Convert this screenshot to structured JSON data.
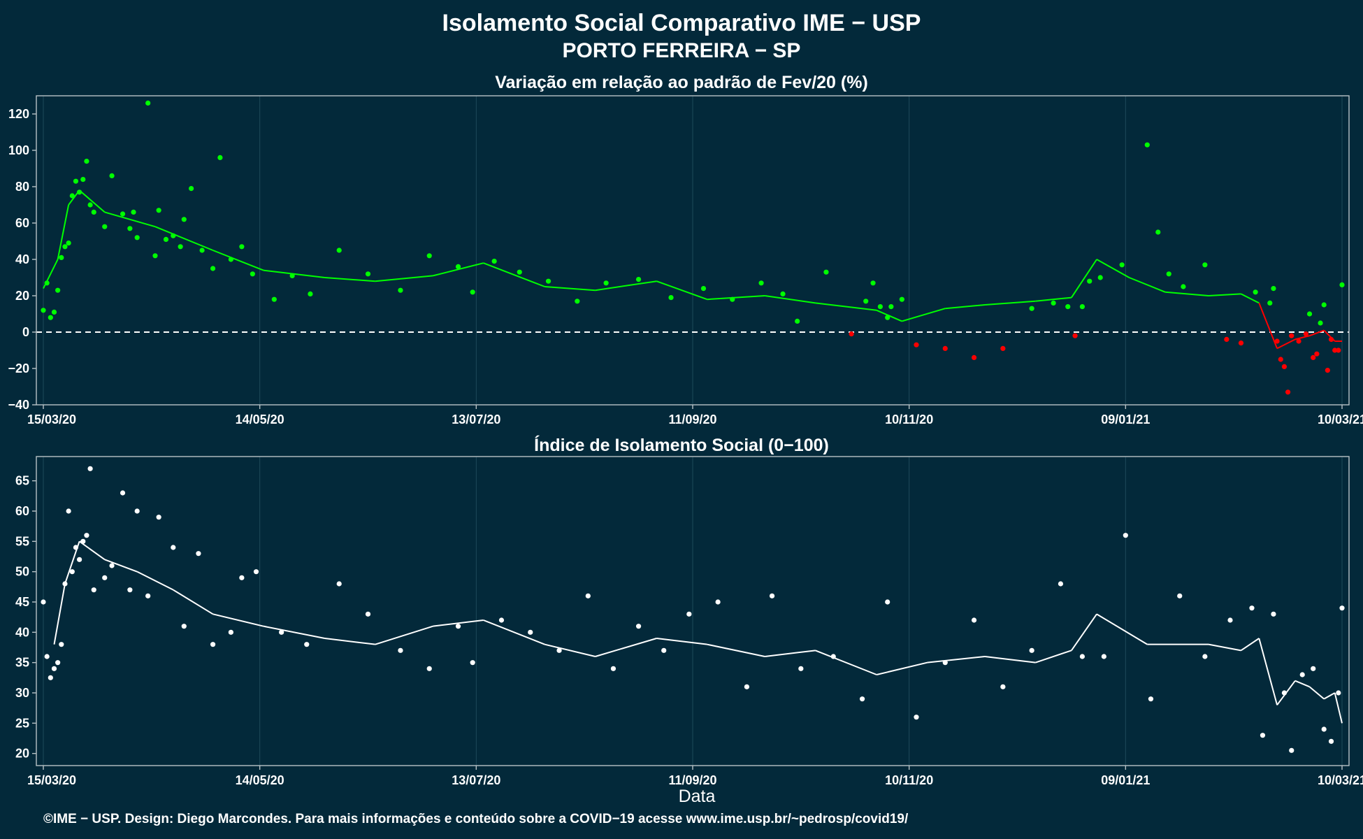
{
  "title_line1": "Isolamento Social Comparativo IME − USP",
  "title_line2": "PORTO FERREIRA − SP",
  "xlabel": "Data",
  "caption": "©IME − USP. Design: Diego Marcondes. Para mais informações e conteúdo sobre a COVID−19 acesse www.ime.usp.br/~pedrosp/covid19/",
  "colors": {
    "background": "#03293a",
    "positive": "#00ff00",
    "negative": "#ff0000",
    "index": "#ffffff",
    "reference_line": "#ffffff"
  },
  "chart_data": [
    {
      "type": "scatter",
      "title": "Variação em relação ao padrão de Fev/20 (%)",
      "xtick_labels": [
        "15/03/20",
        "14/05/20",
        "13/07/20",
        "11/09/20",
        "10/11/20",
        "09/01/21",
        "10/03/21"
      ],
      "xlim": [
        "2020-03-15",
        "2021-03-10"
      ],
      "ylim": [
        -40,
        130
      ],
      "yticks": [
        -40,
        -20,
        0,
        20,
        40,
        60,
        80,
        100,
        120
      ],
      "reference_line": 0,
      "series": [
        {
          "kind": "points",
          "color_rule": "green if >= 0, red if < 0",
          "x": [
            "2020-03-15",
            "2020-03-16",
            "2020-03-17",
            "2020-03-18",
            "2020-03-19",
            "2020-03-20",
            "2020-03-21",
            "2020-03-22",
            "2020-03-23",
            "2020-03-24",
            "2020-03-25",
            "2020-03-26",
            "2020-03-27",
            "2020-03-28",
            "2020-03-29",
            "2020-04-01",
            "2020-04-03",
            "2020-04-06",
            "2020-04-08",
            "2020-04-09",
            "2020-04-10",
            "2020-04-13",
            "2020-04-15",
            "2020-04-16",
            "2020-04-18",
            "2020-04-20",
            "2020-04-22",
            "2020-04-23",
            "2020-04-25",
            "2020-04-28",
            "2020-05-01",
            "2020-05-03",
            "2020-05-06",
            "2020-05-09",
            "2020-05-12",
            "2020-05-18",
            "2020-05-23",
            "2020-05-28",
            "2020-06-05",
            "2020-06-13",
            "2020-06-22",
            "2020-06-30",
            "2020-07-08",
            "2020-07-12",
            "2020-07-18",
            "2020-07-25",
            "2020-08-02",
            "2020-08-10",
            "2020-08-18",
            "2020-08-27",
            "2020-09-05",
            "2020-09-14",
            "2020-09-22",
            "2020-09-30",
            "2020-10-06",
            "2020-10-10",
            "2020-10-18",
            "2020-10-25",
            "2020-10-29",
            "2020-10-31",
            "2020-11-02",
            "2020-11-04",
            "2020-11-05",
            "2020-11-08",
            "2020-11-12",
            "2020-11-20",
            "2020-11-28",
            "2020-12-06",
            "2020-12-14",
            "2020-12-20",
            "2020-12-24",
            "2020-12-26",
            "2020-12-28",
            "2020-12-30",
            "2021-01-02",
            "2021-01-08",
            "2021-01-15",
            "2021-01-18",
            "2021-01-21",
            "2021-01-25",
            "2021-01-31",
            "2021-02-06",
            "2021-02-10",
            "2021-02-14",
            "2021-02-18",
            "2021-02-19",
            "2021-02-20",
            "2021-02-21",
            "2021-02-22",
            "2021-02-23",
            "2021-02-24",
            "2021-02-26",
            "2021-02-28",
            "2021-03-01",
            "2021-03-02",
            "2021-03-03",
            "2021-03-04",
            "2021-03-05",
            "2021-03-06",
            "2021-03-07",
            "2021-03-08",
            "2021-03-09",
            "2021-03-10"
          ],
          "y": [
            12,
            27,
            8,
            11,
            23,
            41,
            47,
            49,
            75,
            83,
            77,
            84,
            94,
            70,
            66,
            58,
            86,
            65,
            57,
            66,
            52,
            126,
            42,
            67,
            51,
            53,
            47,
            62,
            79,
            45,
            35,
            96,
            40,
            47,
            32,
            18,
            31,
            21,
            45,
            32,
            23,
            42,
            36,
            22,
            39,
            33,
            28,
            17,
            27,
            29,
            19,
            24,
            18,
            27,
            21,
            6,
            33,
            -1,
            17,
            27,
            14,
            8,
            14,
            18,
            -7,
            -9,
            -14,
            -9,
            13,
            16,
            14,
            -2,
            14,
            28,
            30,
            37,
            103,
            55,
            32,
            25,
            37,
            -4,
            -6,
            22,
            16,
            24,
            -5,
            -15,
            -19,
            -33,
            -2,
            -5,
            -1,
            10,
            -14,
            -12,
            5,
            15,
            -21,
            -4,
            -10,
            -10,
            26
          ]
        },
        {
          "kind": "moving_average",
          "name": "",
          "x": [
            "2020-03-15",
            "2020-03-19",
            "2020-03-22",
            "2020-03-25",
            "2020-04-01",
            "2020-04-15",
            "2020-05-01",
            "2020-05-15",
            "2020-06-01",
            "2020-06-15",
            "2020-07-01",
            "2020-07-15",
            "2020-08-01",
            "2020-08-15",
            "2020-09-01",
            "2020-09-15",
            "2020-10-01",
            "2020-10-15",
            "2020-11-01",
            "2020-11-08",
            "2020-11-20",
            "2020-12-01",
            "2020-12-15",
            "2020-12-25",
            "2021-01-01",
            "2021-01-10",
            "2021-01-20",
            "2021-02-01",
            "2021-02-10",
            "2021-02-15",
            "2021-02-20",
            "2021-02-25",
            "2021-03-01",
            "2021-03-05",
            "2021-03-08",
            "2021-03-10"
          ],
          "y": [
            24,
            40,
            70,
            78,
            66,
            58,
            45,
            34,
            30,
            28,
            31,
            38,
            25,
            23,
            28,
            18,
            20,
            16,
            12,
            6,
            13,
            15,
            17,
            19,
            40,
            30,
            22,
            20,
            21,
            16,
            -9,
            -4,
            -2,
            1,
            -5,
            -5
          ]
        }
      ]
    },
    {
      "type": "scatter",
      "title": "Índice de Isolamento Social (0−100)",
      "xtick_labels": [
        "15/03/20",
        "14/05/20",
        "13/07/20",
        "11/09/20",
        "10/11/20",
        "09/01/21",
        "10/03/21"
      ],
      "xlim": [
        "2020-03-15",
        "2021-03-10"
      ],
      "ylim": [
        18,
        69
      ],
      "yticks": [
        20,
        25,
        30,
        35,
        40,
        45,
        50,
        55,
        60,
        65
      ],
      "series": [
        {
          "kind": "points",
          "x": [
            "2020-03-15",
            "2020-03-16",
            "2020-03-17",
            "2020-03-18",
            "2020-03-19",
            "2020-03-20",
            "2020-03-21",
            "2020-03-22",
            "2020-03-23",
            "2020-03-24",
            "2020-03-25",
            "2020-03-26",
            "2020-03-27",
            "2020-03-28",
            "2020-03-29",
            "2020-04-01",
            "2020-04-03",
            "2020-04-06",
            "2020-04-08",
            "2020-04-10",
            "2020-04-13",
            "2020-04-16",
            "2020-04-20",
            "2020-04-23",
            "2020-04-27",
            "2020-05-01",
            "2020-05-06",
            "2020-05-09",
            "2020-05-13",
            "2020-05-20",
            "2020-05-27",
            "2020-06-05",
            "2020-06-13",
            "2020-06-22",
            "2020-06-30",
            "2020-07-08",
            "2020-07-12",
            "2020-07-20",
            "2020-07-28",
            "2020-08-05",
            "2020-08-13",
            "2020-08-20",
            "2020-08-27",
            "2020-09-03",
            "2020-09-10",
            "2020-09-18",
            "2020-09-26",
            "2020-10-03",
            "2020-10-11",
            "2020-10-20",
            "2020-10-28",
            "2020-11-04",
            "2020-11-12",
            "2020-11-20",
            "2020-11-28",
            "2020-12-06",
            "2020-12-14",
            "2020-12-22",
            "2020-12-28",
            "2021-01-03",
            "2021-01-09",
            "2021-01-16",
            "2021-01-24",
            "2021-01-31",
            "2021-02-07",
            "2021-02-13",
            "2021-02-16",
            "2021-02-19",
            "2021-02-22",
            "2021-02-24",
            "2021-02-27",
            "2021-03-02",
            "2021-03-05",
            "2021-03-07",
            "2021-03-09",
            "2021-03-10"
          ],
          "y": [
            45,
            36,
            32.5,
            34,
            35,
            38,
            48,
            60,
            50,
            54,
            52,
            55,
            56,
            67,
            47,
            49,
            51,
            63,
            47,
            60,
            46,
            59,
            54,
            41,
            53,
            38,
            40,
            49,
            50,
            40,
            38,
            48,
            43,
            37,
            34,
            41,
            35,
            42,
            40,
            37,
            46,
            34,
            41,
            37,
            43,
            45,
            31,
            46,
            34,
            36,
            29,
            45,
            26,
            35,
            42,
            31,
            37,
            48,
            36,
            36,
            56,
            29,
            46,
            36,
            42,
            44,
            23,
            43,
            30,
            20.5,
            33,
            34,
            24,
            22,
            30,
            44
          ]
        },
        {
          "kind": "moving_average",
          "name": "",
          "x": [
            "2020-03-18",
            "2020-03-21",
            "2020-03-25",
            "2020-04-01",
            "2020-04-10",
            "2020-04-20",
            "2020-05-01",
            "2020-05-15",
            "2020-06-01",
            "2020-06-15",
            "2020-07-01",
            "2020-07-15",
            "2020-08-01",
            "2020-08-15",
            "2020-09-01",
            "2020-09-15",
            "2020-10-01",
            "2020-10-15",
            "2020-11-01",
            "2020-11-15",
            "2020-12-01",
            "2020-12-15",
            "2020-12-25",
            "2021-01-01",
            "2021-01-15",
            "2021-02-01",
            "2021-02-10",
            "2021-02-15",
            "2021-02-20",
            "2021-02-25",
            "2021-03-01",
            "2021-03-05",
            "2021-03-08",
            "2021-03-10"
          ],
          "y": [
            38,
            48,
            55,
            52,
            50,
            47,
            43,
            41,
            39,
            38,
            41,
            42,
            38,
            36,
            39,
            38,
            36,
            37,
            33,
            35,
            36,
            35,
            37,
            43,
            38,
            38,
            37,
            39,
            28,
            32,
            31,
            29,
            30,
            25
          ]
        }
      ]
    }
  ]
}
